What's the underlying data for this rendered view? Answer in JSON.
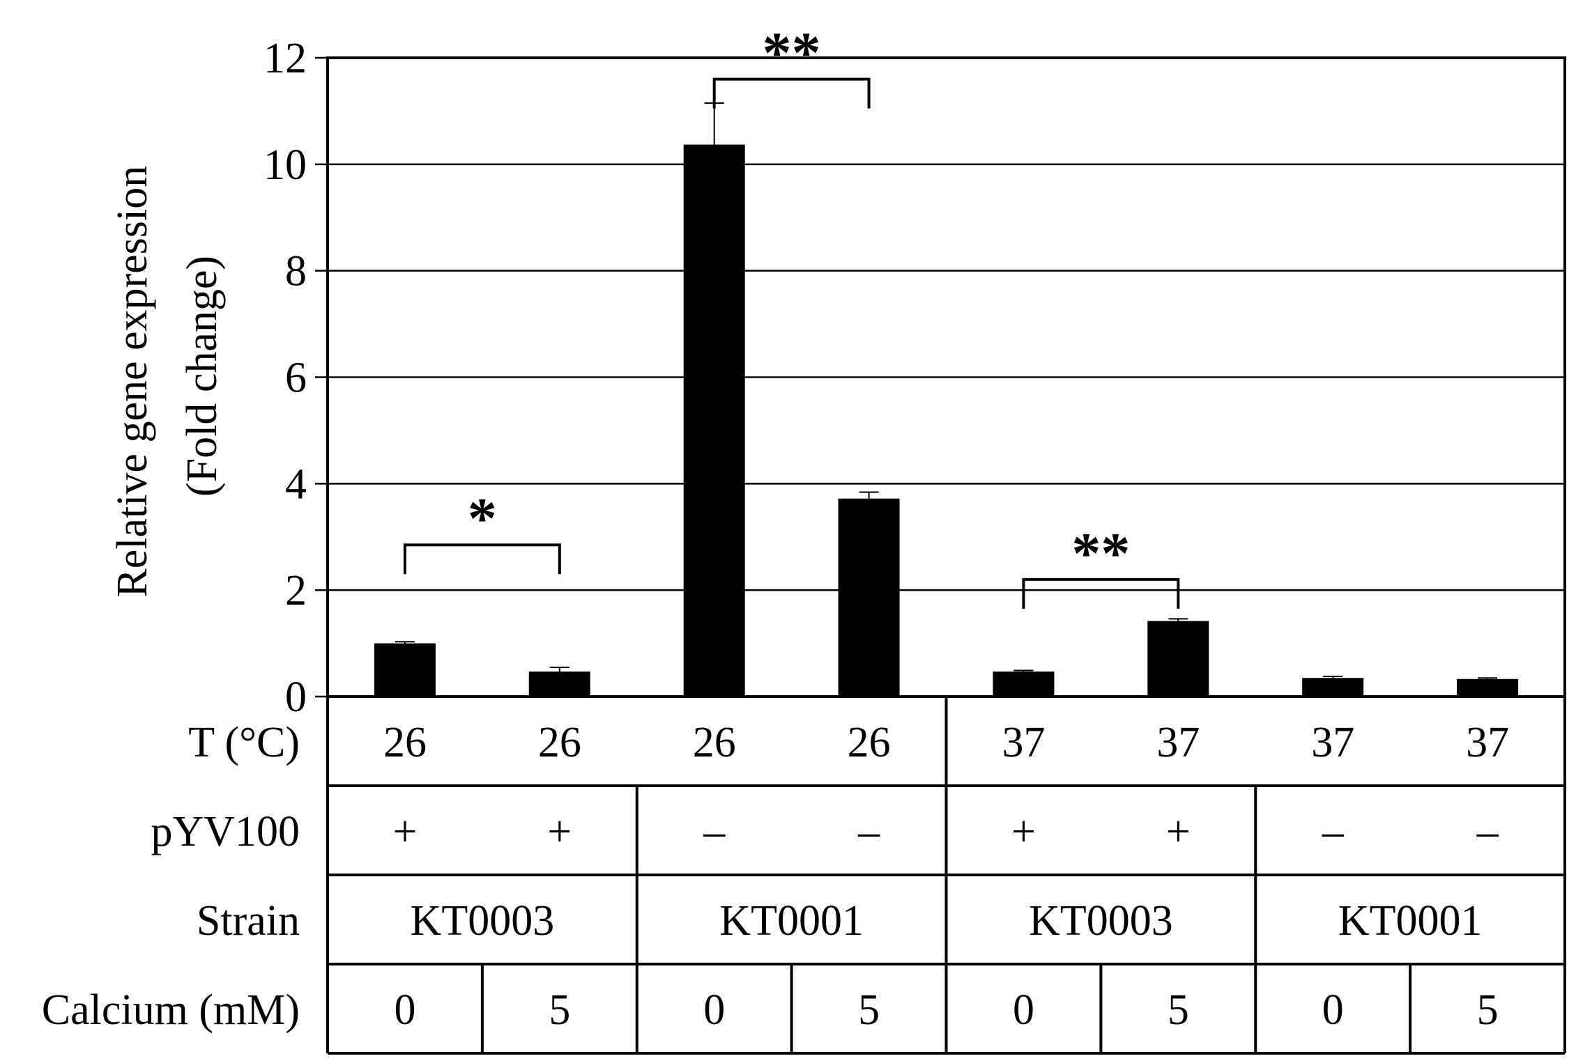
{
  "chart_data": {
    "type": "bar",
    "title": "",
    "xlabel": "",
    "ylabel_lines": [
      "Relative gene expression",
      "(Fold change)"
    ],
    "ylim": [
      0,
      12
    ],
    "yticks": [
      "0",
      "2",
      "4",
      "6",
      "8",
      "10",
      "12"
    ],
    "grid": true,
    "bar_color": "#000000",
    "values": [
      1.0,
      0.47,
      10.37,
      3.72,
      0.47,
      1.42,
      0.35,
      0.33
    ],
    "errors": [
      0.03,
      0.08,
      0.78,
      0.12,
      0.02,
      0.04,
      0.03,
      0.02
    ],
    "table": [
      {
        "label": "T (°C)",
        "groups": [
          {
            "span": 1,
            "text": "26",
            "divider": false
          },
          {
            "span": 1,
            "text": "26",
            "divider": false
          },
          {
            "span": 1,
            "text": "26",
            "divider": false
          },
          {
            "span": 1,
            "text": "26",
            "divider": true
          },
          {
            "span": 1,
            "text": "37",
            "divider": false
          },
          {
            "span": 1,
            "text": "37",
            "divider": false
          },
          {
            "span": 1,
            "text": "37",
            "divider": false
          },
          {
            "span": 1,
            "text": "37",
            "divider": true
          }
        ]
      },
      {
        "label": "pYV100",
        "groups": [
          {
            "span": 1,
            "text": "+",
            "divider": false
          },
          {
            "span": 1,
            "text": "+",
            "divider": true
          },
          {
            "span": 1,
            "text": "–",
            "divider": false
          },
          {
            "span": 1,
            "text": "–",
            "divider": true
          },
          {
            "span": 1,
            "text": "+",
            "divider": false
          },
          {
            "span": 1,
            "text": "+",
            "divider": true
          },
          {
            "span": 1,
            "text": "–",
            "divider": false
          },
          {
            "span": 1,
            "text": "–",
            "divider": true
          }
        ]
      },
      {
        "label": "Strain",
        "groups": [
          {
            "span": 2,
            "text": "KT0003",
            "divider": true
          },
          {
            "span": 2,
            "text": "KT0001",
            "divider": true
          },
          {
            "span": 2,
            "text": "KT0003",
            "divider": true
          },
          {
            "span": 2,
            "text": "KT0001",
            "divider": true
          }
        ]
      },
      {
        "label": "Calcium (mM)",
        "groups": [
          {
            "span": 1,
            "text": "0",
            "divider": true
          },
          {
            "span": 1,
            "text": "5",
            "divider": true
          },
          {
            "span": 1,
            "text": "0",
            "divider": true
          },
          {
            "span": 1,
            "text": "5",
            "divider": true
          },
          {
            "span": 1,
            "text": "0",
            "divider": true
          },
          {
            "span": 1,
            "text": "5",
            "divider": true
          },
          {
            "span": 1,
            "text": "0",
            "divider": true
          },
          {
            "span": 1,
            "text": "5",
            "divider": true
          }
        ]
      }
    ],
    "significance": [
      {
        "from": 0,
        "to": 1,
        "label": "*",
        "y": 2.85
      },
      {
        "from": 2,
        "to": 3,
        "label": "**",
        "y": 11.6
      },
      {
        "from": 4,
        "to": 5,
        "label": "**",
        "y": 2.2
      }
    ]
  }
}
